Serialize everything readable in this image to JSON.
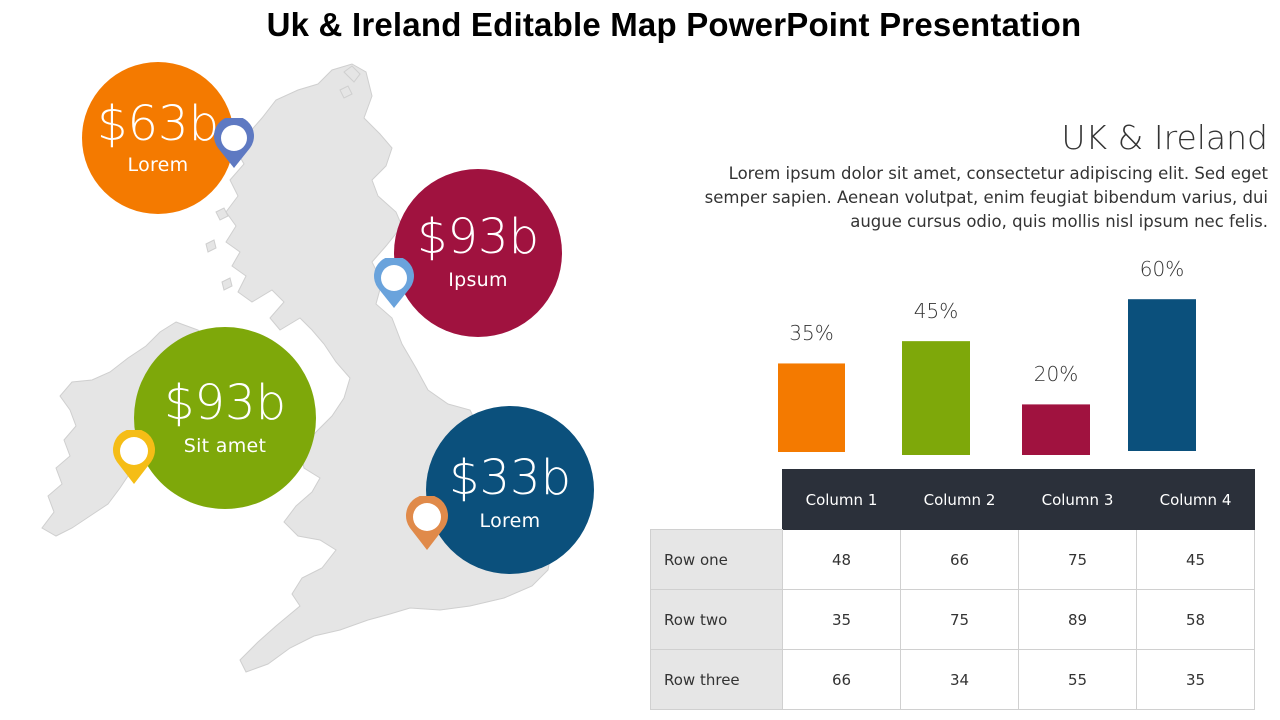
{
  "title": "Uk & Ireland Editable Map PowerPoint Presentation",
  "bubbles": [
    {
      "value": "$63b",
      "label": "Lorem",
      "color": "#f47a00"
    },
    {
      "value": "$93b",
      "label": "Ipsum",
      "color": "#a0123f"
    },
    {
      "value": "$93b",
      "label": "Sit amet",
      "color": "#7ea80a"
    },
    {
      "value": "$33b",
      "label": "Lorem",
      "color": "#0b507c"
    }
  ],
  "pins": [
    {
      "color": "#5e79c2",
      "icon": "map-pin-icon"
    },
    {
      "color": "#6aa3dc",
      "icon": "map-pin-icon"
    },
    {
      "color": "#f5bd16",
      "icon": "map-pin-icon"
    },
    {
      "color": "#e08a4a",
      "icon": "map-pin-icon"
    }
  ],
  "heading": "UK & Ireland",
  "description": "Lorem ipsum dolor sit amet, consectetur adipiscing elit. Sed eget semper sapien. Aenean volutpat, enim feugiat bibendum varius, dui augue cursus odio, quis mollis nisl ipsum nec felis.",
  "chart_data": {
    "type": "bar",
    "values": [
      35,
      45,
      20,
      60
    ],
    "labels": [
      "35%",
      "45%",
      "20%",
      "60%"
    ],
    "colors": [
      "#f47a00",
      "#7ea80a",
      "#a0123f",
      "#0b507c"
    ]
  },
  "table": {
    "columns": [
      "Column 1",
      "Column 2",
      "Column 3",
      "Column 4"
    ],
    "rows": [
      {
        "label": "Row one",
        "values": [
          "48",
          "66",
          "75",
          "45"
        ]
      },
      {
        "label": "Row two",
        "values": [
          "35",
          "75",
          "89",
          "58"
        ]
      },
      {
        "label": "Row three",
        "values": [
          "66",
          "34",
          "55",
          "35"
        ]
      }
    ]
  }
}
